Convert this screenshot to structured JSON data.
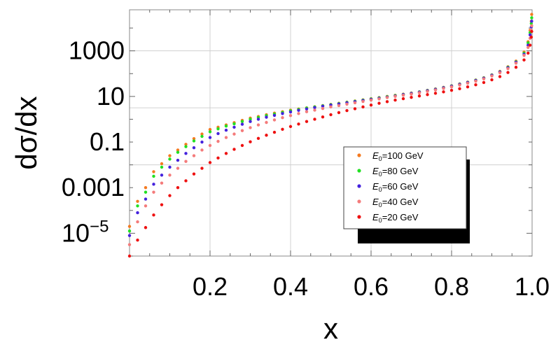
{
  "chart_data": {
    "type": "scatter",
    "title": "",
    "xlabel": "x",
    "ylabel": "dσ/dx",
    "xlim": [
      0.0,
      1.0
    ],
    "ylim_log10": [
      -6,
      4.8
    ],
    "y_scale": "log",
    "grid": true,
    "legend_position": "center-right",
    "x_ticks": [
      {
        "value": 0.2,
        "label": "0.2"
      },
      {
        "value": 0.4,
        "label": "0.4"
      },
      {
        "value": 0.6,
        "label": "0.6"
      },
      {
        "value": 0.8,
        "label": "0.8"
      },
      {
        "value": 1.0,
        "label": "1.0"
      }
    ],
    "y_ticks": [
      {
        "log10": 3,
        "label": "1000"
      },
      {
        "log10": 1,
        "label": "10"
      },
      {
        "log10": -1,
        "label": "0.1"
      },
      {
        "log10": -3,
        "label": "0.001"
      },
      {
        "log10": -5,
        "label": "10",
        "sup": "−5"
      }
    ],
    "x": [
      0.0,
      0.02,
      0.04,
      0.06,
      0.08,
      0.1,
      0.12,
      0.14,
      0.16,
      0.18,
      0.2,
      0.22,
      0.24,
      0.26,
      0.28,
      0.3,
      0.32,
      0.34,
      0.36,
      0.38,
      0.4,
      0.42,
      0.44,
      0.46,
      0.48,
      0.5,
      0.52,
      0.54,
      0.56,
      0.58,
      0.6,
      0.62,
      0.64,
      0.66,
      0.68,
      0.7,
      0.72,
      0.74,
      0.76,
      0.78,
      0.8,
      0.82,
      0.84,
      0.86,
      0.88,
      0.9,
      0.92,
      0.94,
      0.96,
      0.98,
      0.99,
      0.995,
      0.998,
      0.999
    ],
    "series": [
      {
        "name": "E0=100 GeV",
        "color": "#f47a20",
        "y": [
          -4.7,
          -3.6,
          -3.0,
          -2.3,
          -1.95,
          -1.6,
          -1.35,
          -1.1,
          -0.85,
          -0.65,
          -0.45,
          -0.35,
          -0.25,
          -0.15,
          -0.05,
          0.05,
          0.12,
          0.2,
          0.27,
          0.33,
          0.4,
          0.45,
          0.5,
          0.55,
          0.6,
          0.65,
          0.7,
          0.75,
          0.8,
          0.85,
          0.9,
          0.95,
          1.0,
          1.05,
          1.1,
          1.15,
          1.2,
          1.27,
          1.33,
          1.4,
          1.47,
          1.55,
          1.63,
          1.72,
          1.82,
          1.95,
          2.1,
          2.3,
          2.55,
          2.95,
          3.4,
          3.9,
          4.3,
          4.6
        ]
      },
      {
        "name": "E0=80 GeV",
        "color": "#22e022",
        "y": [
          -4.9,
          -3.8,
          -3.2,
          -2.5,
          -2.1,
          -1.75,
          -1.45,
          -1.2,
          -0.95,
          -0.75,
          -0.55,
          -0.42,
          -0.3,
          -0.2,
          -0.1,
          0.0,
          0.08,
          0.16,
          0.23,
          0.3,
          0.37,
          0.43,
          0.49,
          0.54,
          0.59,
          0.64,
          0.69,
          0.74,
          0.79,
          0.84,
          0.89,
          0.94,
          0.99,
          1.04,
          1.09,
          1.14,
          1.2,
          1.26,
          1.32,
          1.39,
          1.46,
          1.54,
          1.62,
          1.71,
          1.81,
          1.94,
          2.08,
          2.28,
          2.52,
          2.9,
          3.35,
          3.8,
          4.2,
          4.45
        ]
      },
      {
        "name": "E0=60 GeV",
        "color": "#4422dd",
        "y": [
          -5.1,
          -4.1,
          -3.5,
          -2.85,
          -2.45,
          -2.1,
          -1.8,
          -1.5,
          -1.25,
          -1.0,
          -0.8,
          -0.63,
          -0.48,
          -0.35,
          -0.22,
          -0.1,
          0.0,
          0.09,
          0.17,
          0.25,
          0.32,
          0.39,
          0.45,
          0.51,
          0.57,
          0.62,
          0.67,
          0.72,
          0.77,
          0.82,
          0.87,
          0.92,
          0.97,
          1.02,
          1.08,
          1.13,
          1.19,
          1.25,
          1.31,
          1.38,
          1.45,
          1.53,
          1.61,
          1.7,
          1.8,
          1.93,
          2.07,
          2.26,
          2.5,
          2.85,
          3.25,
          3.7,
          4.05,
          4.3
        ]
      },
      {
        "name": "E0=40 GeV",
        "color": "#f47b7b",
        "y": [
          -5.5,
          -4.5,
          -3.8,
          -3.2,
          -2.8,
          -2.45,
          -2.15,
          -1.85,
          -1.6,
          -1.35,
          -1.15,
          -0.97,
          -0.8,
          -0.65,
          -0.5,
          -0.37,
          -0.25,
          -0.14,
          -0.03,
          0.07,
          0.16,
          0.25,
          0.33,
          0.4,
          0.47,
          0.54,
          0.6,
          0.66,
          0.72,
          0.78,
          0.84,
          0.89,
          0.95,
          1.0,
          1.05,
          1.1,
          1.16,
          1.22,
          1.28,
          1.35,
          1.42,
          1.5,
          1.58,
          1.67,
          1.77,
          1.9,
          2.04,
          2.22,
          2.46,
          2.8,
          3.15,
          3.55,
          3.9,
          4.1
        ]
      },
      {
        "name": "E0=20 GeV",
        "color": "#ee1111",
        "y": [
          -6.0,
          -5.3,
          -4.75,
          -4.2,
          -3.75,
          -3.35,
          -3.0,
          -2.7,
          -2.4,
          -2.15,
          -1.9,
          -1.7,
          -1.5,
          -1.32,
          -1.15,
          -0.99,
          -0.84,
          -0.7,
          -0.57,
          -0.44,
          -0.32,
          -0.21,
          -0.1,
          0.0,
          0.1,
          0.2,
          0.29,
          0.38,
          0.46,
          0.54,
          0.62,
          0.7,
          0.77,
          0.84,
          0.9,
          0.96,
          1.02,
          1.08,
          1.14,
          1.2,
          1.27,
          1.34,
          1.42,
          1.51,
          1.61,
          1.73,
          1.87,
          2.05,
          2.28,
          2.6,
          2.9,
          3.25,
          3.6,
          3.85
        ]
      }
    ],
    "legend": [
      {
        "sym": "E",
        "sub": "0",
        "rest": "=100 GeV"
      },
      {
        "sym": "E",
        "sub": "0",
        "rest": "=80 GeV"
      },
      {
        "sym": "E",
        "sub": "0",
        "rest": "=60 GeV"
      },
      {
        "sym": "E",
        "sub": "0",
        "rest": "=40 GeV"
      },
      {
        "sym": "E",
        "sub": "0",
        "rest": "=20 GeV"
      }
    ]
  }
}
